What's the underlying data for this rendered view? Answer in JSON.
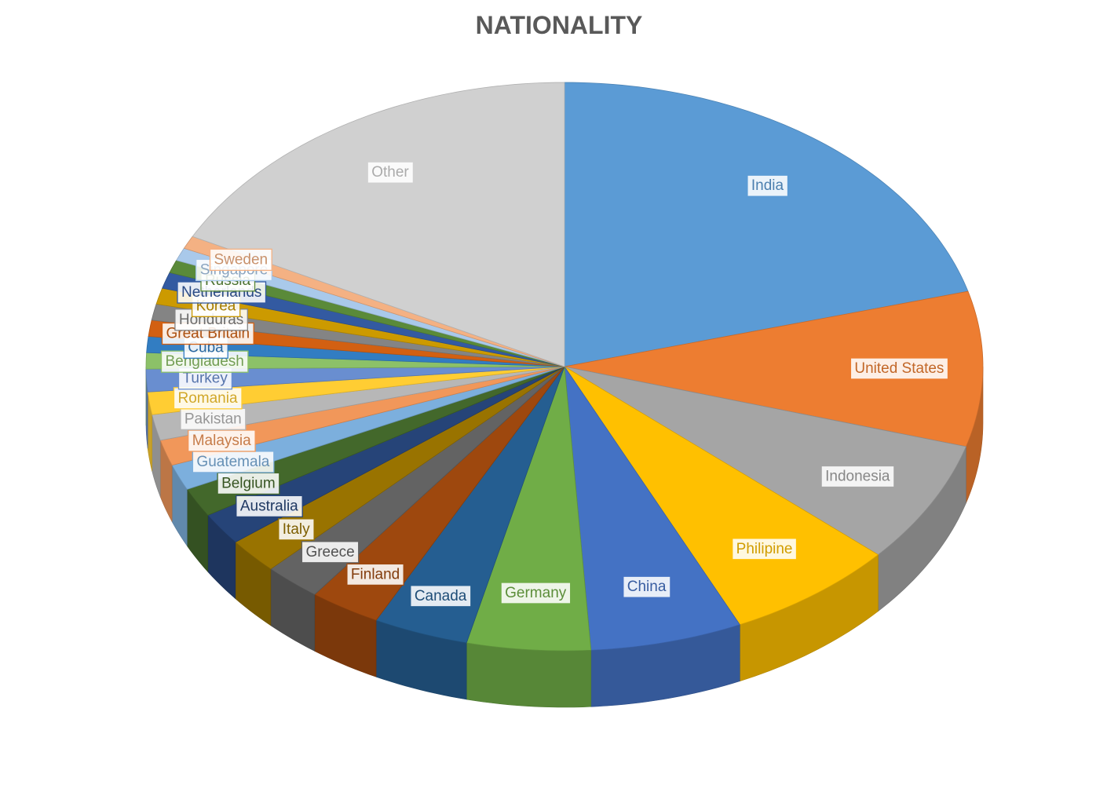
{
  "chart_data": {
    "type": "pie",
    "title": "NATIONALITY",
    "series": [
      {
        "name": "India",
        "value": 113,
        "color": "#5B9BD5"
      },
      {
        "name": "United States",
        "value": 48,
        "color": "#ED7D31"
      },
      {
        "name": "Indonesia",
        "value": 38,
        "color": "#A5A5A5"
      },
      {
        "name": "Philipine",
        "value": 36,
        "color": "#FFC000"
      },
      {
        "name": "China",
        "value": 32,
        "color": "#4472C4"
      },
      {
        "name": "Germany",
        "value": 26,
        "color": "#70AD47"
      },
      {
        "name": "Canada",
        "value": 20,
        "color": "#255E91"
      },
      {
        "name": "Finland",
        "value": 15,
        "color": "#9E480E"
      },
      {
        "name": "Greece",
        "value": 12,
        "color": "#636363"
      },
      {
        "name": "Italy",
        "value": 11,
        "color": "#997300"
      },
      {
        "name": "Australia",
        "value": 10,
        "color": "#264478"
      },
      {
        "name": "Belgium",
        "value": 9,
        "color": "#43682B"
      },
      {
        "name": "Guatemala",
        "value": 8,
        "color": "#7CAFDD"
      },
      {
        "name": "Malaysia",
        "value": 8,
        "color": "#F1975A"
      },
      {
        "name": "Pakistan",
        "value": 8,
        "color": "#B7B7B7"
      },
      {
        "name": "Romania",
        "value": 7,
        "color": "#FFCD33"
      },
      {
        "name": "Turkey",
        "value": 7,
        "color": "#698ED0"
      },
      {
        "name": "Bengladesh",
        "value": 5,
        "color": "#8CC168"
      },
      {
        "name": "Cuba",
        "value": 5,
        "color": "#327DC2"
      },
      {
        "name": "Great Britain",
        "value": 5,
        "color": "#D26012"
      },
      {
        "name": "Honduras",
        "value": 5,
        "color": "#848484"
      },
      {
        "name": "Korea",
        "value": 5,
        "color": "#CC9A00"
      },
      {
        "name": "Netherlands",
        "value": 5,
        "color": "#335AA1"
      },
      {
        "name": "Russia",
        "value": 4,
        "color": "#5A8A39"
      },
      {
        "name": "Singapore",
        "value": 4,
        "color": "#A9C9EA"
      },
      {
        "name": "Sweden",
        "value": 4,
        "color": "#F4B183"
      },
      {
        "name": "Other",
        "value": 95,
        "color": "#D0D0D0"
      }
    ],
    "labels": "data-labels-on-slices",
    "legend": "none",
    "style": "3d-pie"
  }
}
